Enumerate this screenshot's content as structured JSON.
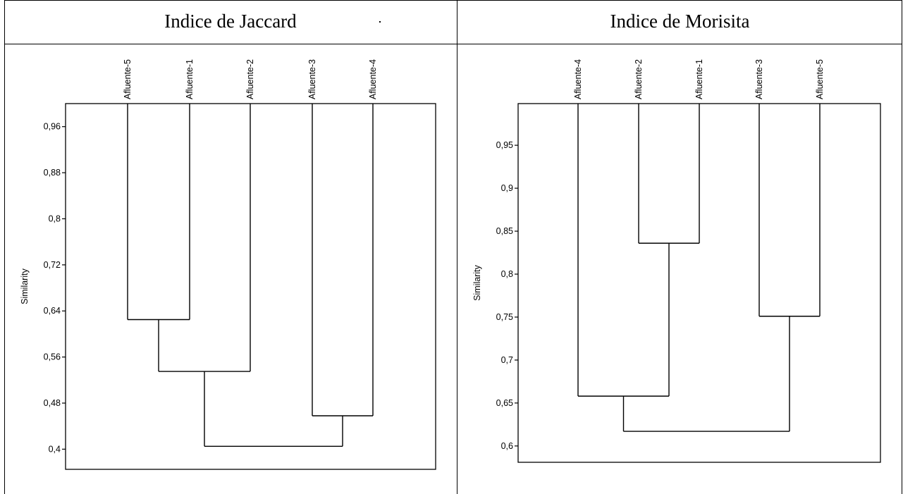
{
  "chart_data": [
    {
      "type": "dendrogram",
      "title": "Indice de Jaccard",
      "ylabel": "Similarity",
      "ylim": [
        0.365,
        1.0
      ],
      "yticks": [
        0.96,
        0.88,
        0.8,
        0.72,
        0.64,
        0.56,
        0.48,
        0.4
      ],
      "ytick_labels": [
        "0,96",
        "0,88",
        "0,8",
        "0,72",
        "0,64",
        "0,56",
        "0,48",
        "0,4"
      ],
      "leaves": [
        "Afluente-5",
        "Afluente-1",
        "Afluente-2",
        "Afluente-3",
        "Afluente-4"
      ],
      "merges": [
        {
          "left": 0,
          "right": 1,
          "similarity": 0.625
        },
        {
          "left": "m0",
          "right": 2,
          "similarity": 0.535
        },
        {
          "left": 3,
          "right": 4,
          "similarity": 0.458
        },
        {
          "left": "m1",
          "right": "m2",
          "similarity": 0.405
        }
      ]
    },
    {
      "type": "dendrogram",
      "title": "Indice de Morisita",
      "ylabel": "Similarity",
      "ylim": [
        0.581,
        0.9985
      ],
      "yticks": [
        0.95,
        0.9,
        0.85,
        0.8,
        0.75,
        0.7,
        0.65,
        0.6
      ],
      "ytick_labels": [
        "0,95",
        "0,9",
        "0,85",
        "0,8",
        "0,75",
        "0,7",
        "0,65",
        "0,6"
      ],
      "leaves": [
        "Afluente-4",
        "Afluente-2",
        "Afluente-1",
        "Afluente-3",
        "Afluente-5"
      ],
      "merges": [
        {
          "left": 1,
          "right": 2,
          "similarity": 0.836
        },
        {
          "left": 3,
          "right": 4,
          "similarity": 0.751
        },
        {
          "left": 0,
          "right": "m0",
          "similarity": 0.658
        },
        {
          "left": "m2",
          "right": "m1",
          "similarity": 0.617
        }
      ]
    }
  ]
}
